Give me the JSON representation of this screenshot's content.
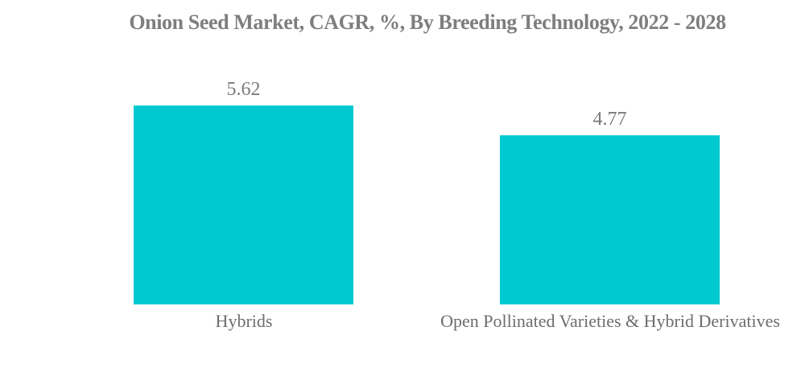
{
  "chart_data": {
    "type": "bar",
    "title": "Onion Seed Market, CAGR, %, By Breeding Technology, 2022 - 2028",
    "categories": [
      "Hybrids",
      "Open Pollinated Varieties & Hybrid Derivatives"
    ],
    "values": [
      5.62,
      4.77
    ],
    "value_labels": [
      "5.62",
      "4.77"
    ],
    "xlabel": "",
    "ylabel": "",
    "ylim": [
      0,
      5.62
    ],
    "grid": false,
    "legend": false,
    "bar_color": "#00C9D0",
    "title_color": "#7E7E7E",
    "value_color": "#7A7A7A",
    "category_color": "#6D6D6D",
    "background_color": "#FFFFFF"
  }
}
